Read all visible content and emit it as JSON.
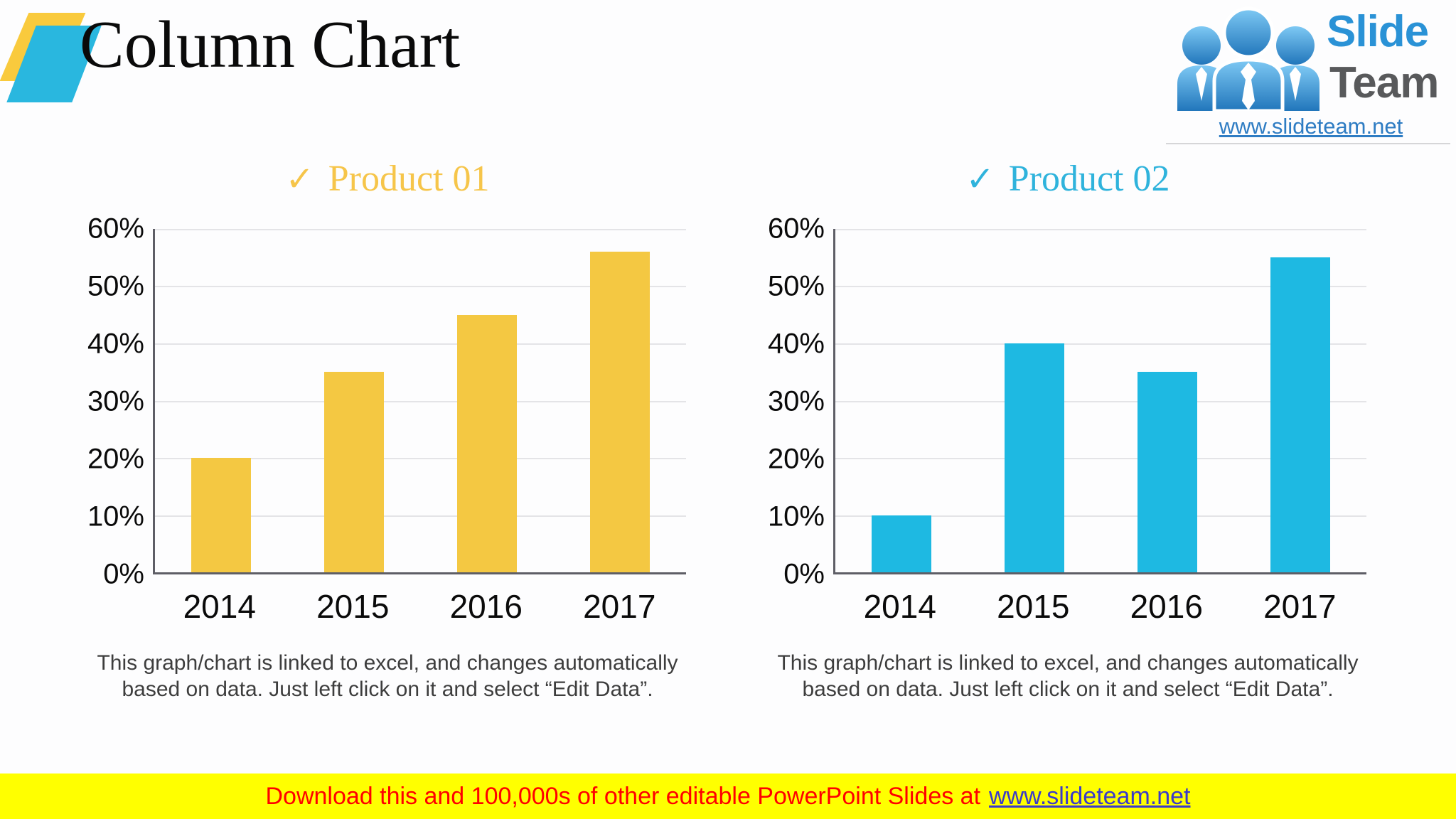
{
  "header": {
    "title": "Column Chart"
  },
  "brand": {
    "name_line1": "Slide",
    "name_line2": "Team",
    "url": "www.slideteam.net",
    "colors": {
      "slide_text": "#2a92d6",
      "team_text": "#58595b",
      "url_text": "#2e7cc3",
      "people_icon": "#2e86c8"
    }
  },
  "chart_data": [
    {
      "type": "bar",
      "title": "Product 01",
      "title_prefix": "✓",
      "title_color": "#F6C54A",
      "bar_color": "#F4C842",
      "categories": [
        "2014",
        "2015",
        "2016",
        "2017"
      ],
      "values": [
        20,
        35,
        45,
        56
      ],
      "unit": "%",
      "ylim": [
        0,
        60
      ],
      "ytick_step": 10,
      "grid": true,
      "legend_position": "none",
      "xlabel": "",
      "ylabel": "",
      "caption": "This graph/chart is linked to excel, and changes automatically based on data. Just left click on it and select “Edit Data”."
    },
    {
      "type": "bar",
      "title": "Product 02",
      "title_prefix": "✓",
      "title_color": "#2FB3DC",
      "bar_color": "#1EB9E2",
      "categories": [
        "2014",
        "2015",
        "2016",
        "2017"
      ],
      "values": [
        10,
        40,
        35,
        55
      ],
      "unit": "%",
      "ylim": [
        0,
        60
      ],
      "ytick_step": 10,
      "grid": true,
      "legend_position": "none",
      "xlabel": "",
      "ylabel": "",
      "caption": "This graph/chart is linked to excel, and changes automatically based on data. Just left click on it and select “Edit Data”."
    }
  ],
  "footer": {
    "text": "Download this and 100,000s of other editable PowerPoint Slides at",
    "link": "www.slideteam.net",
    "bg": "#FFFF00",
    "text_color": "#FF0000",
    "link_color": "#3A3ACB"
  }
}
